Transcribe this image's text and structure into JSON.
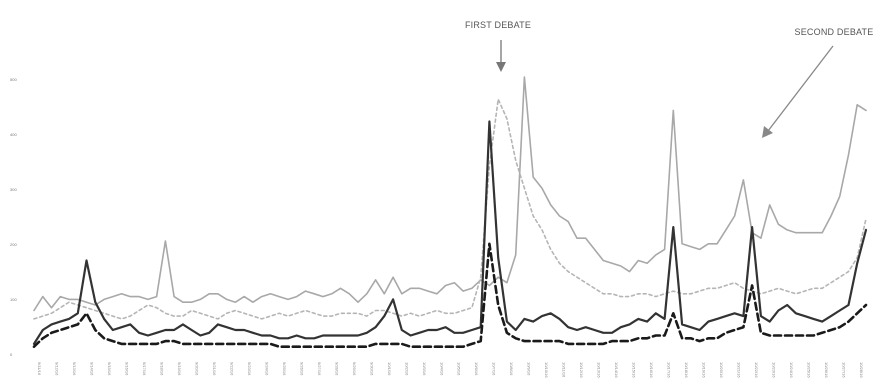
{
  "chart_data": {
    "type": "line",
    "title": "",
    "xlabel": "",
    "ylabel": "",
    "ylim": [
      0,
      100
    ],
    "grid": false,
    "legend": "none",
    "annotations": [
      {
        "text": "FIRST DEBATE",
        "x": 52
      },
      {
        "text": "SECOND DEBATE",
        "x": 83
      }
    ],
    "x": [
      0,
      1,
      2,
      3,
      4,
      5,
      6,
      7,
      8,
      9,
      10,
      11,
      12,
      13,
      14,
      15,
      16,
      17,
      18,
      19,
      20,
      21,
      22,
      23,
      24,
      25,
      26,
      27,
      28,
      29,
      30,
      31,
      32,
      33,
      34,
      35,
      36,
      37,
      38,
      39,
      40,
      41,
      42,
      43,
      44,
      45,
      46,
      47,
      48,
      49,
      50,
      51,
      52,
      53,
      54,
      55,
      56,
      57,
      58,
      59,
      60,
      61,
      62,
      63,
      64,
      65,
      66,
      67,
      68,
      69,
      70,
      71,
      72,
      73,
      74,
      75,
      76,
      77,
      78,
      79,
      80,
      81,
      82,
      83,
      84,
      85,
      86,
      87,
      88,
      89,
      90,
      91,
      92,
      93,
      94,
      95
    ],
    "series": [
      {
        "style": "solid-light",
        "color": "#a8a8a8",
        "values": [
          16,
          21,
          17,
          21,
          20,
          20,
          19,
          18,
          20,
          21,
          22,
          21,
          21,
          20,
          21,
          41,
          21,
          19,
          19,
          20,
          22,
          22,
          20,
          19,
          21,
          19,
          21,
          22,
          21,
          20,
          21,
          23,
          22,
          21,
          22,
          24,
          22,
          19,
          22,
          27,
          22,
          28,
          22,
          24,
          24,
          23,
          22,
          25,
          26,
          23,
          24,
          27,
          25,
          28,
          26,
          36,
          100,
          64,
          60,
          54,
          50,
          48,
          42,
          42,
          38,
          34,
          33,
          32,
          30,
          34,
          33,
          36,
          38,
          88,
          40,
          39,
          38,
          40,
          40,
          45,
          50,
          63,
          44,
          42,
          54,
          47,
          45,
          44,
          44,
          44,
          44,
          50,
          57,
          72,
          90,
          88
        ]
      },
      {
        "style": "dotted-light",
        "color": "#b5b5b5",
        "values": [
          13,
          14,
          15,
          17,
          19,
          18,
          17,
          16,
          15,
          14,
          13,
          14,
          16,
          18,
          17,
          15,
          14,
          14,
          16,
          15,
          14,
          13,
          15,
          16,
          15,
          14,
          13,
          14,
          15,
          14,
          15,
          16,
          15,
          14,
          14,
          15,
          15,
          15,
          14,
          16,
          16,
          15,
          14,
          15,
          14,
          15,
          16,
          15,
          15,
          16,
          17,
          28,
          68,
          92,
          85,
          70,
          60,
          50,
          45,
          38,
          33,
          30,
          28,
          26,
          24,
          22,
          22,
          21,
          21,
          22,
          22,
          21,
          22,
          23,
          22,
          22,
          23,
          24,
          24,
          25,
          26,
          24,
          23,
          22,
          23,
          24,
          23,
          22,
          23,
          24,
          24,
          26,
          28,
          30,
          35,
          49
        ]
      },
      {
        "style": "solid-dark",
        "color": "#333333",
        "values": [
          4,
          9,
          11,
          12,
          13,
          15,
          34,
          19,
          13,
          9,
          10,
          11,
          8,
          7,
          8,
          9,
          9,
          11,
          9,
          7,
          8,
          11,
          10,
          9,
          9,
          8,
          7,
          7,
          6,
          6,
          7,
          6,
          6,
          7,
          7,
          7,
          7,
          7,
          8,
          10,
          14,
          20,
          9,
          7,
          8,
          9,
          9,
          10,
          8,
          8,
          9,
          10,
          84,
          35,
          12,
          9,
          13,
          12,
          14,
          15,
          13,
          10,
          9,
          10,
          9,
          8,
          8,
          10,
          11,
          13,
          12,
          15,
          13,
          46,
          11,
          10,
          9,
          12,
          13,
          14,
          15,
          14,
          46,
          14,
          12,
          16,
          18,
          15,
          14,
          13,
          12,
          14,
          16,
          18,
          33,
          45
        ]
      },
      {
        "style": "dashed-dark",
        "color": "#1a1a1a",
        "values": [
          3,
          6,
          8,
          9,
          10,
          11,
          15,
          9,
          6,
          5,
          4,
          4,
          4,
          4,
          4,
          5,
          5,
          4,
          4,
          4,
          4,
          4,
          4,
          4,
          4,
          4,
          4,
          4,
          3,
          3,
          3,
          3,
          3,
          3,
          3,
          3,
          3,
          3,
          3,
          4,
          4,
          4,
          4,
          3,
          3,
          3,
          3,
          3,
          3,
          3,
          4,
          5,
          40,
          18,
          8,
          6,
          5,
          5,
          5,
          5,
          5,
          4,
          4,
          4,
          4,
          4,
          5,
          5,
          5,
          6,
          6,
          7,
          7,
          15,
          6,
          6,
          5,
          6,
          6,
          8,
          9,
          10,
          25,
          8,
          7,
          7,
          7,
          7,
          7,
          7,
          8,
          9,
          10,
          12,
          15,
          18
        ]
      }
    ],
    "yticks": [
      "0",
      "100",
      "200",
      "300",
      "400",
      "500"
    ],
    "xticks": [
      "9/11/16",
      "9/12/16",
      "9/13/16",
      "9/14/16",
      "9/15/16",
      "9/16/16",
      "9/17/16",
      "9/18/16",
      "9/19/16",
      "9/20/16",
      "9/21/16",
      "9/22/16",
      "9/23/16",
      "9/24/16",
      "9/25/16",
      "9/26/16",
      "9/27/16",
      "9/28/16",
      "9/29/16",
      "9/30/16",
      "10/1/16",
      "10/2/16",
      "10/3/16",
      "10/4/16",
      "10/5/16",
      "10/6/16",
      "10/7/16",
      "10/8/16",
      "10/9/16",
      "10/10/16",
      "10/11/16",
      "10/12/16",
      "10/13/16",
      "10/14/16",
      "10/15/16",
      "10/16/16",
      "10/17/16",
      "10/18/16",
      "10/19/16",
      "10/20/16",
      "10/21/16",
      "10/22/16",
      "10/23/16",
      "10/24/16",
      "10/25/16",
      "10/26/16",
      "10/27/16",
      "10/28/16"
    ]
  }
}
